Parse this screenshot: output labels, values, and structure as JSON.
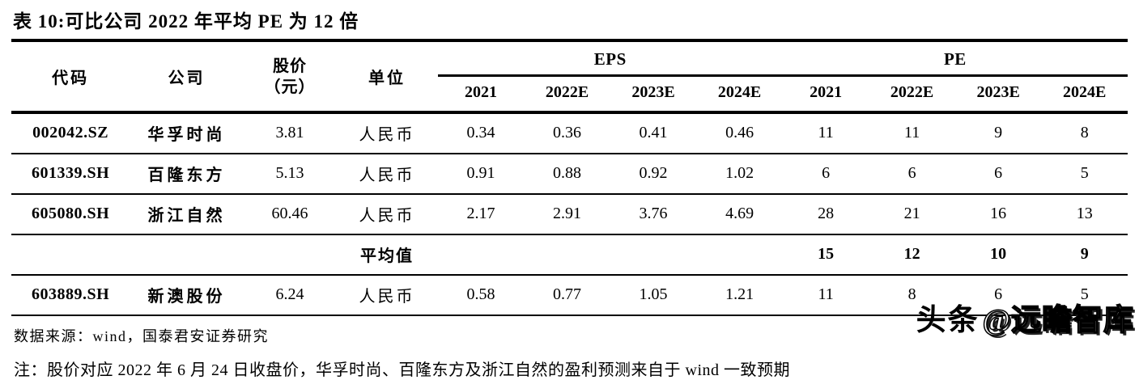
{
  "title": "表 10:可比公司 2022 年平均 PE 为 12 倍",
  "colors": {
    "text": "#000000",
    "background": "#ffffff",
    "rule": "#000000"
  },
  "table": {
    "headers": {
      "code": "代码",
      "company": "公司",
      "price_line1": "股价",
      "price_line2": "（元）",
      "unit": "单位",
      "eps_group": "EPS",
      "pe_group": "PE",
      "years": [
        "2021",
        "2022E",
        "2023E",
        "2024E"
      ]
    },
    "rows": [
      {
        "code": "002042.SZ",
        "company": "华孚时尚",
        "price": "3.81",
        "unit": "人民币",
        "eps": [
          "0.34",
          "0.36",
          "0.41",
          "0.46"
        ],
        "pe": [
          "11",
          "11",
          "9",
          "8"
        ]
      },
      {
        "code": "601339.SH",
        "company": "百隆东方",
        "price": "5.13",
        "unit": "人民币",
        "eps": [
          "0.91",
          "0.88",
          "0.92",
          "1.02"
        ],
        "pe": [
          "6",
          "6",
          "6",
          "5"
        ]
      },
      {
        "code": "605080.SH",
        "company": "浙江自然",
        "price": "60.46",
        "unit": "人民币",
        "eps": [
          "2.17",
          "2.91",
          "3.76",
          "4.69"
        ],
        "pe": [
          "28",
          "21",
          "16",
          "13"
        ]
      }
    ],
    "average_row": {
      "label": "平均值",
      "pe": [
        "15",
        "12",
        "10",
        "9"
      ]
    },
    "extra_row": {
      "code": "603889.SH",
      "company": "新澳股份",
      "price": "6.24",
      "unit": "人民币",
      "eps": [
        "0.58",
        "0.77",
        "1.05",
        "1.21"
      ],
      "pe": [
        "11",
        "8",
        "6",
        "5"
      ]
    }
  },
  "footer": {
    "source": "数据来源：wind，国泰君安证券研究",
    "note": "注：股价对应 2022 年 6 月 24 日收盘价，华孚时尚、百隆东方及浙江自然的盈利预测来自于 wind 一致预期"
  },
  "watermark": {
    "part1": "头条",
    "part2": "@远瞻智库"
  }
}
